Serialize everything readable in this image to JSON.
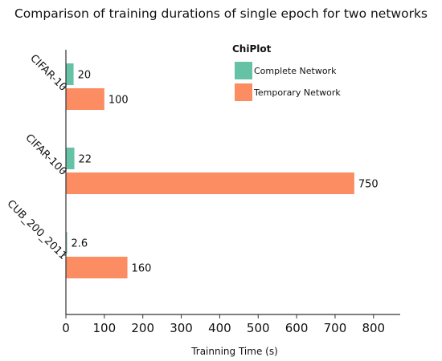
{
  "chart_data": {
    "type": "bar",
    "orientation": "horizontal",
    "title": "Comparison of training durations of single epoch for two networks",
    "xlabel": "Trainning Time (s)",
    "ylabel": "",
    "categories": [
      "CIFAR-10",
      "CIFAR-100",
      "CUB_200_2011"
    ],
    "series": [
      {
        "name": "Complete Network",
        "values": [
          20,
          22,
          2.6
        ],
        "labels": [
          "20",
          "22",
          "2.6"
        ],
        "color": "#66c2a5"
      },
      {
        "name": "Temporary Network",
        "values": [
          100,
          750,
          160
        ],
        "labels": [
          "100",
          "750",
          "160"
        ],
        "color": "#fc8d62"
      }
    ],
    "xlim": [
      0,
      850
    ],
    "xticks": [
      0,
      100,
      200,
      300,
      400,
      500,
      600,
      700,
      800
    ],
    "grid": false,
    "legend": {
      "title": "ChiPlot",
      "placement": "top-right"
    }
  }
}
